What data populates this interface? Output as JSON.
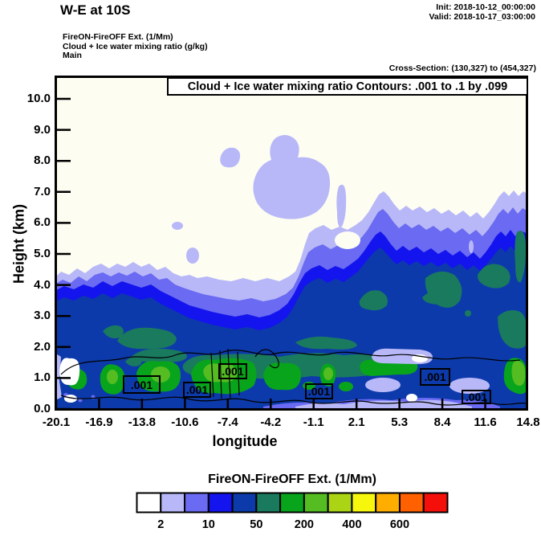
{
  "header": {
    "title": "W-E at 10S",
    "init_label": "Init: 2018-10-12_00:00:00",
    "valid_label": "Valid: 2018-10-17_03:00:00",
    "field_line1": "FireON-FireOFF Ext.  (1/Mm)",
    "field_line2": "Cloud + Ice water mixing ratio  (g/kg)",
    "field_line3": "Main",
    "cross_section": "Cross-Section: (130,327) to (454,327)"
  },
  "plot": {
    "title_box": "Cloud + Ice water mixing ratio Contours: .001 to .1 by .099",
    "xlabel": "longitude",
    "ylabel": "Height (km)",
    "bg_color": "#fdfdf2",
    "x_ticks": [
      "-20.1",
      "-16.9",
      "-13.8",
      "-10.6",
      "-7.4",
      "-4.2",
      "-1.1",
      "2.1",
      "5.3",
      "8.4",
      "11.6",
      "14.8"
    ],
    "y_ticks": [
      "10.0",
      "9.0",
      "8.0",
      "7.0",
      "6.0",
      "5.0",
      "4.0",
      "3.0",
      "2.0",
      "1.0",
      "0.0"
    ],
    "contour_label": ".001"
  },
  "colorbar": {
    "title": "FireON-FireOFF Ext.  (1/Mm)",
    "colors": [
      "#ffffff",
      "#b8b8f8",
      "#6a6af2",
      "#1414ee",
      "#0d3aaa",
      "#1a7a5e",
      "#08a41c",
      "#55bd22",
      "#aad414",
      "#f7f70e",
      "#ffae00",
      "#ff6000",
      "#f50f0a"
    ],
    "tick_labels": [
      "2",
      "10",
      "50",
      "200",
      "400",
      "600"
    ]
  },
  "chart_data": {
    "type": "heatmap",
    "subtype": "filled-contour-vertical-cross-section",
    "title": "Cloud + Ice water mixing ratio Contours: .001 to .1 by .099",
    "xlabel": "longitude",
    "ylabel": "Height (km)",
    "xlim": [
      -20.1,
      14.8
    ],
    "ylim": [
      0.0,
      10.8
    ],
    "x_tick_values": [
      -20.1,
      -16.9,
      -13.8,
      -10.6,
      -7.4,
      -4.2,
      -1.1,
      2.1,
      5.3,
      8.4,
      11.6,
      14.8
    ],
    "y_tick_values": [
      0.0,
      1.0,
      2.0,
      3.0,
      4.0,
      5.0,
      6.0,
      7.0,
      8.0,
      9.0,
      10.0
    ],
    "grid": false,
    "legend_position": "bottom",
    "fill_variable": "FireON-FireOFF Ext. (1/Mm)",
    "fill_palette": [
      "#ffffff",
      "#b8b8f8",
      "#6a6af2",
      "#1414ee",
      "#0d3aaa",
      "#1a7a5e",
      "#08a41c",
      "#55bd22",
      "#aad414",
      "#f7f70e",
      "#ffae00",
      "#ff6000",
      "#f50f0a"
    ],
    "fill_labeled_levels": [
      2,
      10,
      50,
      200,
      400,
      600
    ],
    "overlay_line_contours": {
      "variable": "Cloud + Ice water mixing ratio (g/kg)",
      "levels": [
        0.001,
        0.1
      ],
      "step": 0.099,
      "label_shown": ".001",
      "label_count": 6
    },
    "description": "Blue extinction-difference plume fills the section below ~4 km west of lon -1 and deepens to ~6.5-7 km toward the east edge; dark-blue core (10-50 1/Mm) with teal and green maxima (50-400 1/Mm) concentrated near 0.5-1.5 km height; isolated 2-10 1/Mm patches aloft near 6-8.5 km between lon -8 and -3; .001 g/kg cloud+ice mixing-ratio line contours hug the green band near 1 km."
  }
}
